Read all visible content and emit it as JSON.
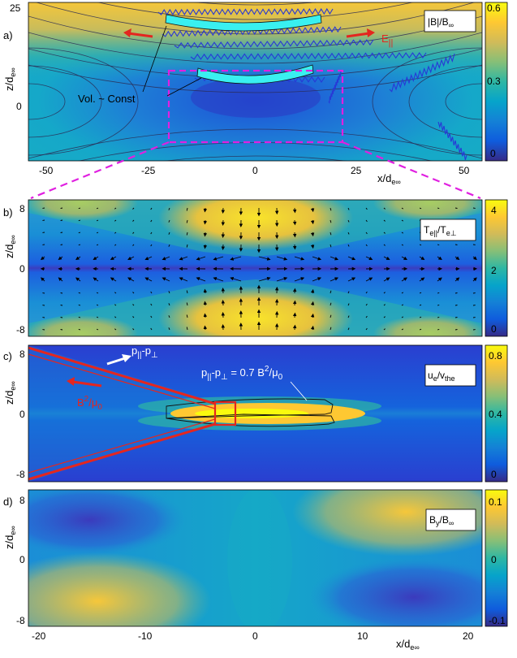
{
  "colors": {
    "parula": [
      "#352a87",
      "#0f5cdd",
      "#1481d6",
      "#06a4ca",
      "#2eb7a4",
      "#87bf77",
      "#d1bb59",
      "#fec832",
      "#f9fb0e"
    ],
    "red": "#e4261f",
    "magenta": "#e020e0",
    "cyan": "#39f0f0"
  },
  "chart_data": [
    {
      "type": "heatmap",
      "panel": "a)",
      "xlabel": "x/d",
      "xlabel_sub": "e∞",
      "ylabel": "z/d",
      "ylabel_sub": "e∞",
      "xticks": [
        "-50",
        "-25",
        "0",
        "25",
        "50"
      ],
      "yticks": [
        "25",
        "0"
      ],
      "xlim": [
        -57,
        57
      ],
      "ylim": [
        -10,
        27
      ],
      "colorbar_ticks": [
        "0.6",
        "0.3",
        "0"
      ],
      "clim": [
        0,
        0.62
      ],
      "legend": "|B|/B",
      "legend_sub": "∞",
      "annotations": {
        "volume": "Vol. ~ Const",
        "efield": "E",
        "efield_sub": "||"
      },
      "box": {
        "x": [
          -20,
          20
        ],
        "z": [
          -8,
          8
        ]
      }
    },
    {
      "type": "heatmap",
      "panel": "b)",
      "ylabel": "z/d",
      "ylabel_sub": "e∞",
      "yticks": [
        "8",
        "0",
        "-8"
      ],
      "xlim": [
        -22,
        21
      ],
      "ylim": [
        -9,
        9
      ],
      "colorbar_ticks": [
        "4",
        "2",
        "0"
      ],
      "clim": [
        -0.2,
        4.3
      ],
      "legend": "T",
      "legend_sub1": "e||",
      "legend_mid": "/T",
      "legend_sub2": "e⊥"
    },
    {
      "type": "heatmap",
      "panel": "c)",
      "ylabel": "z/d",
      "ylabel_sub": "e∞",
      "yticks": [
        "8",
        "0",
        "-8"
      ],
      "xlim": [
        -22,
        21
      ],
      "ylim": [
        -9,
        9
      ],
      "colorbar_ticks": [
        "0.8",
        "0.4",
        "0"
      ],
      "clim": [
        0,
        0.85
      ],
      "legend": "u",
      "legend_sub1": "e",
      "legend_mid": "/v",
      "legend_sub2": "the",
      "annotations": {
        "ppar": "p",
        "ppar_sub": "||",
        "ppar_rest": "-p",
        "ppar_sub2": "⊥",
        "b2": "B",
        "b2_sup": "2",
        "b2_rest": "/μ",
        "b2_sub": "0",
        "contour_pre": "p",
        "contour_sub1": "||",
        "contour_mid": "-p",
        "contour_sub2": "⊥",
        "contour_eq": " = 0.7 B",
        "contour_sup": "2",
        "contour_div": "/μ",
        "contour_sub3": "0"
      }
    },
    {
      "type": "heatmap",
      "panel": "d)",
      "xlabel": "x/d",
      "xlabel_sub": "e∞",
      "ylabel": "z/d",
      "ylabel_sub": "e∞",
      "xticks": [
        "-20",
        "-10",
        "0",
        "10",
        "20"
      ],
      "yticks": [
        "8",
        "0",
        "-8"
      ],
      "xlim": [
        -22,
        21
      ],
      "ylim": [
        -9,
        9
      ],
      "colorbar_ticks": [
        "0.1",
        "0",
        "-0.1"
      ],
      "clim": [
        -0.12,
        0.12
      ],
      "legend": "B",
      "legend_sub1": "y",
      "legend_mid": "/B",
      "legend_sub2": "∞"
    }
  ]
}
